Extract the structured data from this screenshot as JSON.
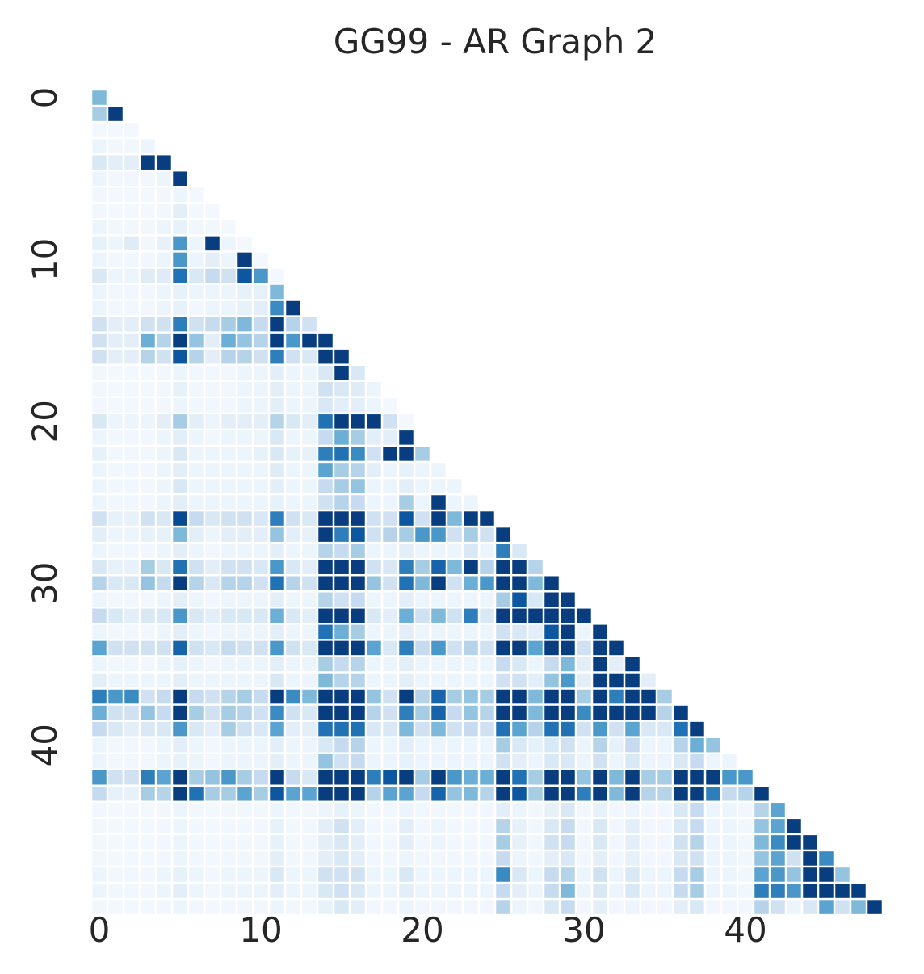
{
  "chart_data": {
    "type": "heatmap",
    "title": "GG99 - AR Graph 2",
    "xlabel": "",
    "ylabel": "",
    "n": 49,
    "layout": "lower-triangular",
    "x_ticks": [
      0,
      10,
      20,
      30,
      40
    ],
    "y_ticks": [
      0,
      10,
      20,
      30,
      40
    ],
    "colormap": "Blues",
    "value_range": [
      0,
      1
    ],
    "grid": false,
    "colorbar": false,
    "cell_separator_color": "#ffffff",
    "values": [
      [
        0.45
      ],
      [
        0.35,
        0.95
      ],
      [
        0.02,
        0.02,
        0.02
      ],
      [
        0.05,
        0.03,
        0.03,
        0.05
      ],
      [
        0.15,
        0.1,
        0.1,
        0.95,
        0.95
      ],
      [
        0.05,
        0.03,
        0.03,
        0.03,
        0.05,
        0.95
      ],
      [
        0.03,
        0.02,
        0.02,
        0.02,
        0.03,
        0.05,
        0.02
      ],
      [
        0.03,
        0.02,
        0.02,
        0.02,
        0.03,
        0.1,
        0.02,
        0.02
      ],
      [
        0.05,
        0.03,
        0.03,
        0.03,
        0.05,
        0.08,
        0.03,
        0.03,
        0.02
      ],
      [
        0.08,
        0.05,
        0.12,
        0.03,
        0.08,
        0.6,
        0.05,
        0.95,
        0.05,
        0.02
      ],
      [
        0.05,
        0.03,
        0.03,
        0.03,
        0.05,
        0.6,
        0.05,
        0.1,
        0.05,
        0.95,
        0.02
      ],
      [
        0.15,
        0.05,
        0.05,
        0.12,
        0.12,
        0.75,
        0.15,
        0.25,
        0.2,
        0.85,
        0.6,
        0.02
      ],
      [
        0.05,
        0.03,
        0.03,
        0.03,
        0.05,
        0.08,
        0.05,
        0.05,
        0.05,
        0.08,
        0.08,
        0.45
      ],
      [
        0.05,
        0.03,
        0.03,
        0.03,
        0.05,
        0.08,
        0.03,
        0.05,
        0.05,
        0.08,
        0.1,
        0.65,
        0.95
      ],
      [
        0.2,
        0.1,
        0.1,
        0.2,
        0.2,
        0.7,
        0.2,
        0.25,
        0.35,
        0.45,
        0.25,
        0.95,
        0.3,
        0.2
      ],
      [
        0.2,
        0.1,
        0.1,
        0.5,
        0.3,
        0.95,
        0.4,
        0.1,
        0.5,
        0.4,
        0.3,
        0.95,
        0.6,
        0.95,
        0.95
      ],
      [
        0.2,
        0.1,
        0.1,
        0.3,
        0.2,
        0.85,
        0.3,
        0.1,
        0.3,
        0.3,
        0.2,
        0.7,
        0.2,
        0.15,
        0.95,
        0.95
      ],
      [
        0.03,
        0.02,
        0.02,
        0.02,
        0.03,
        0.05,
        0.03,
        0.03,
        0.03,
        0.05,
        0.05,
        0.1,
        0.05,
        0.05,
        0.15,
        0.95,
        0.15
      ],
      [
        0.03,
        0.02,
        0.02,
        0.02,
        0.03,
        0.08,
        0.03,
        0.03,
        0.03,
        0.05,
        0.05,
        0.1,
        0.05,
        0.05,
        0.2,
        0.15,
        0.12,
        0.05
      ],
      [
        0.03,
        0.02,
        0.02,
        0.02,
        0.03,
        0.05,
        0.03,
        0.03,
        0.03,
        0.05,
        0.05,
        0.1,
        0.05,
        0.05,
        0.15,
        0.1,
        0.1,
        0.05,
        0.02
      ],
      [
        0.15,
        0.05,
        0.05,
        0.05,
        0.1,
        0.35,
        0.1,
        0.05,
        0.1,
        0.1,
        0.1,
        0.3,
        0.15,
        0.1,
        0.75,
        0.95,
        0.95,
        0.95,
        0.2,
        0.02
      ],
      [
        0.05,
        0.03,
        0.03,
        0.03,
        0.05,
        0.1,
        0.05,
        0.03,
        0.05,
        0.05,
        0.05,
        0.15,
        0.05,
        0.05,
        0.25,
        0.5,
        0.35,
        0.1,
        0.1,
        0.95
      ],
      [
        0.08,
        0.03,
        0.03,
        0.03,
        0.05,
        0.15,
        0.05,
        0.05,
        0.05,
        0.05,
        0.08,
        0.15,
        0.08,
        0.08,
        0.7,
        0.75,
        0.65,
        0.2,
        0.95,
        0.95,
        0.35
      ],
      [
        0.05,
        0.03,
        0.03,
        0.03,
        0.05,
        0.1,
        0.05,
        0.05,
        0.05,
        0.05,
        0.05,
        0.12,
        0.05,
        0.05,
        0.55,
        0.35,
        0.3,
        0.1,
        0.05,
        0.08,
        0.05,
        0.05
      ],
      [
        0.05,
        0.03,
        0.03,
        0.03,
        0.05,
        0.15,
        0.05,
        0.05,
        0.05,
        0.05,
        0.05,
        0.1,
        0.05,
        0.05,
        0.25,
        0.35,
        0.4,
        0.05,
        0.05,
        0.1,
        0.05,
        0.05,
        0.05
      ],
      [
        0.05,
        0.03,
        0.03,
        0.03,
        0.05,
        0.1,
        0.05,
        0.05,
        0.05,
        0.05,
        0.05,
        0.08,
        0.05,
        0.05,
        0.2,
        0.3,
        0.25,
        0.05,
        0.05,
        0.35,
        0.05,
        0.95,
        0.05,
        0.05
      ],
      [
        0.2,
        0.08,
        0.08,
        0.2,
        0.15,
        0.9,
        0.25,
        0.15,
        0.2,
        0.2,
        0.15,
        0.7,
        0.2,
        0.15,
        0.95,
        0.95,
        0.95,
        0.2,
        0.2,
        0.85,
        0.2,
        0.95,
        0.45,
        0.95,
        0.95
      ],
      [
        0.1,
        0.05,
        0.05,
        0.08,
        0.08,
        0.45,
        0.1,
        0.05,
        0.1,
        0.1,
        0.1,
        0.4,
        0.1,
        0.08,
        0.95,
        0.7,
        0.85,
        0.2,
        0.3,
        0.35,
        0.6,
        0.6,
        0.2,
        0.35,
        0.2,
        0.95
      ],
      [
        0.05,
        0.03,
        0.03,
        0.03,
        0.05,
        0.1,
        0.05,
        0.03,
        0.05,
        0.05,
        0.05,
        0.1,
        0.05,
        0.05,
        0.3,
        0.25,
        0.35,
        0.05,
        0.05,
        0.1,
        0.05,
        0.05,
        0.05,
        0.15,
        0.05,
        0.7,
        0.15
      ],
      [
        0.15,
        0.08,
        0.08,
        0.35,
        0.15,
        0.75,
        0.2,
        0.1,
        0.2,
        0.2,
        0.15,
        0.6,
        0.15,
        0.1,
        0.95,
        0.95,
        0.95,
        0.2,
        0.15,
        0.7,
        0.35,
        0.8,
        0.45,
        0.95,
        0.3,
        0.95,
        0.95,
        0.3
      ],
      [
        0.3,
        0.15,
        0.15,
        0.4,
        0.25,
        0.95,
        0.3,
        0.15,
        0.3,
        0.3,
        0.2,
        0.75,
        0.3,
        0.2,
        0.95,
        0.95,
        0.95,
        0.4,
        0.2,
        0.75,
        0.45,
        0.95,
        0.2,
        0.5,
        0.6,
        0.95,
        0.95,
        0.45,
        0.95
      ],
      [
        0.05,
        0.03,
        0.03,
        0.03,
        0.05,
        0.1,
        0.05,
        0.03,
        0.05,
        0.05,
        0.05,
        0.1,
        0.05,
        0.05,
        0.3,
        0.2,
        0.25,
        0.05,
        0.05,
        0.1,
        0.05,
        0.05,
        0.05,
        0.05,
        0.05,
        0.35,
        0.85,
        0.15,
        0.95,
        0.95
      ],
      [
        0.25,
        0.15,
        0.1,
        0.15,
        0.15,
        0.6,
        0.15,
        0.1,
        0.15,
        0.15,
        0.15,
        0.5,
        0.15,
        0.1,
        0.95,
        0.95,
        0.95,
        0.15,
        0.1,
        0.5,
        0.2,
        0.45,
        0.2,
        0.7,
        0.15,
        0.95,
        0.95,
        0.95,
        0.95,
        0.95,
        0.95
      ],
      [
        0.05,
        0.03,
        0.03,
        0.03,
        0.05,
        0.1,
        0.05,
        0.03,
        0.05,
        0.05,
        0.05,
        0.1,
        0.05,
        0.05,
        0.75,
        0.5,
        0.35,
        0.05,
        0.05,
        0.1,
        0.05,
        0.05,
        0.05,
        0.05,
        0.05,
        0.2,
        0.15,
        0.1,
        0.85,
        0.95,
        0.05,
        0.95
      ],
      [
        0.55,
        0.2,
        0.2,
        0.2,
        0.2,
        0.8,
        0.2,
        0.15,
        0.25,
        0.2,
        0.2,
        0.6,
        0.2,
        0.15,
        0.95,
        0.95,
        0.95,
        0.55,
        0.15,
        0.7,
        0.25,
        0.6,
        0.2,
        0.3,
        0.2,
        0.95,
        0.95,
        0.55,
        0.95,
        0.95,
        0.2,
        0.95,
        0.95
      ],
      [
        0.05,
        0.03,
        0.03,
        0.03,
        0.05,
        0.08,
        0.05,
        0.03,
        0.05,
        0.05,
        0.05,
        0.1,
        0.05,
        0.05,
        0.35,
        0.25,
        0.3,
        0.05,
        0.05,
        0.1,
        0.05,
        0.05,
        0.05,
        0.05,
        0.05,
        0.25,
        0.15,
        0.05,
        0.25,
        0.45,
        0.1,
        0.95,
        0.1,
        0.95
      ],
      [
        0.1,
        0.05,
        0.05,
        0.05,
        0.05,
        0.1,
        0.05,
        0.05,
        0.05,
        0.05,
        0.05,
        0.15,
        0.05,
        0.05,
        0.45,
        0.3,
        0.3,
        0.05,
        0.05,
        0.1,
        0.05,
        0.05,
        0.05,
        0.05,
        0.05,
        0.2,
        0.2,
        0.1,
        0.4,
        0.6,
        0.1,
        0.95,
        0.95,
        0.95,
        0.1
      ],
      [
        0.7,
        0.6,
        0.65,
        0.2,
        0.25,
        0.95,
        0.25,
        0.2,
        0.3,
        0.35,
        0.25,
        0.95,
        0.65,
        0.45,
        0.95,
        0.95,
        0.95,
        0.4,
        0.2,
        0.95,
        0.3,
        0.8,
        0.35,
        0.4,
        0.35,
        0.95,
        0.95,
        0.45,
        0.95,
        0.95,
        0.35,
        0.95,
        0.7,
        0.95,
        0.95,
        0.35
      ],
      [
        0.5,
        0.2,
        0.2,
        0.4,
        0.25,
        0.95,
        0.35,
        0.2,
        0.35,
        0.3,
        0.2,
        0.65,
        0.2,
        0.15,
        0.95,
        0.95,
        0.95,
        0.3,
        0.2,
        0.7,
        0.35,
        0.8,
        0.25,
        0.4,
        0.3,
        0.95,
        0.95,
        0.45,
        0.95,
        0.95,
        0.65,
        0.95,
        0.95,
        0.95,
        0.95,
        0.3,
        0.95
      ],
      [
        0.25,
        0.15,
        0.1,
        0.15,
        0.15,
        0.6,
        0.15,
        0.1,
        0.35,
        0.2,
        0.15,
        0.55,
        0.1,
        0.1,
        0.75,
        0.75,
        0.75,
        0.15,
        0.15,
        0.45,
        0.2,
        0.45,
        0.2,
        0.25,
        0.2,
        0.75,
        0.55,
        0.3,
        0.75,
        0.75,
        0.2,
        0.6,
        0.2,
        0.55,
        0.15,
        0.15,
        0.75,
        0.95
      ],
      [
        0.05,
        0.03,
        0.03,
        0.03,
        0.05,
        0.1,
        0.05,
        0.03,
        0.05,
        0.05,
        0.05,
        0.1,
        0.05,
        0.05,
        0.15,
        0.25,
        0.3,
        0.05,
        0.05,
        0.1,
        0.05,
        0.05,
        0.05,
        0.05,
        0.05,
        0.35,
        0.15,
        0.08,
        0.15,
        0.2,
        0.05,
        0.3,
        0.08,
        0.25,
        0.05,
        0.05,
        0.3,
        0.5,
        0.4
      ],
      [
        0.05,
        0.03,
        0.03,
        0.03,
        0.05,
        0.08,
        0.05,
        0.03,
        0.05,
        0.05,
        0.05,
        0.1,
        0.05,
        0.05,
        0.4,
        0.2,
        0.25,
        0.05,
        0.05,
        0.08,
        0.05,
        0.05,
        0.05,
        0.05,
        0.05,
        0.2,
        0.1,
        0.05,
        0.15,
        0.15,
        0.05,
        0.2,
        0.05,
        0.15,
        0.05,
        0.05,
        0.15,
        0.25,
        0.05,
        0.05
      ],
      [
        0.6,
        0.2,
        0.2,
        0.7,
        0.55,
        0.95,
        0.35,
        0.4,
        0.6,
        0.35,
        0.25,
        0.95,
        0.25,
        0.15,
        0.95,
        0.95,
        0.95,
        0.7,
        0.85,
        0.95,
        0.35,
        0.95,
        0.6,
        0.5,
        0.5,
        0.95,
        0.75,
        0.35,
        0.95,
        0.95,
        0.4,
        0.95,
        0.45,
        0.95,
        0.35,
        0.35,
        0.95,
        0.95,
        0.95,
        0.6,
        0.6
      ],
      [
        0.25,
        0.08,
        0.08,
        0.35,
        0.3,
        0.95,
        0.75,
        0.35,
        0.35,
        0.55,
        0.35,
        0.85,
        0.55,
        0.55,
        0.95,
        0.95,
        0.95,
        0.3,
        0.55,
        0.55,
        0.25,
        0.8,
        0.4,
        0.45,
        0.3,
        0.95,
        0.85,
        0.35,
        0.95,
        0.95,
        0.7,
        0.95,
        0.45,
        0.95,
        0.3,
        0.3,
        0.95,
        0.95,
        0.7,
        0.25,
        0.3,
        0.95
      ],
      [
        0.03,
        0.02,
        0.02,
        0.02,
        0.03,
        0.05,
        0.03,
        0.02,
        0.03,
        0.03,
        0.03,
        0.05,
        0.03,
        0.03,
        0.05,
        0.08,
        0.05,
        0.03,
        0.03,
        0.05,
        0.03,
        0.03,
        0.03,
        0.03,
        0.03,
        0.1,
        0.05,
        0.03,
        0.08,
        0.15,
        0.03,
        0.08,
        0.03,
        0.05,
        0.03,
        0.03,
        0.15,
        0.25,
        0.05,
        0.05,
        0.03,
        0.3,
        0.55
      ],
      [
        0.03,
        0.02,
        0.02,
        0.02,
        0.03,
        0.05,
        0.03,
        0.02,
        0.03,
        0.03,
        0.03,
        0.08,
        0.03,
        0.03,
        0.1,
        0.2,
        0.1,
        0.03,
        0.03,
        0.1,
        0.03,
        0.05,
        0.03,
        0.03,
        0.03,
        0.3,
        0.08,
        0.03,
        0.15,
        0.25,
        0.03,
        0.15,
        0.03,
        0.1,
        0.03,
        0.03,
        0.15,
        0.25,
        0.05,
        0.05,
        0.03,
        0.4,
        0.55,
        0.95
      ],
      [
        0.03,
        0.02,
        0.02,
        0.02,
        0.03,
        0.05,
        0.03,
        0.02,
        0.03,
        0.03,
        0.03,
        0.08,
        0.03,
        0.03,
        0.1,
        0.15,
        0.1,
        0.03,
        0.03,
        0.1,
        0.03,
        0.05,
        0.03,
        0.03,
        0.03,
        0.35,
        0.08,
        0.03,
        0.2,
        0.25,
        0.03,
        0.15,
        0.03,
        0.1,
        0.03,
        0.03,
        0.2,
        0.3,
        0.05,
        0.05,
        0.03,
        0.45,
        0.65,
        0.95,
        0.95
      ],
      [
        0.03,
        0.02,
        0.02,
        0.02,
        0.03,
        0.05,
        0.03,
        0.02,
        0.03,
        0.03,
        0.03,
        0.1,
        0.03,
        0.03,
        0.1,
        0.15,
        0.1,
        0.03,
        0.03,
        0.05,
        0.03,
        0.03,
        0.03,
        0.03,
        0.03,
        0.25,
        0.05,
        0.03,
        0.1,
        0.15,
        0.03,
        0.1,
        0.03,
        0.08,
        0.03,
        0.03,
        0.15,
        0.2,
        0.05,
        0.05,
        0.03,
        0.4,
        0.55,
        0.2,
        0.95,
        0.65
      ],
      [
        0.05,
        0.03,
        0.03,
        0.03,
        0.05,
        0.08,
        0.05,
        0.03,
        0.05,
        0.05,
        0.05,
        0.15,
        0.05,
        0.05,
        0.2,
        0.2,
        0.2,
        0.05,
        0.05,
        0.15,
        0.05,
        0.05,
        0.05,
        0.05,
        0.05,
        0.65,
        0.15,
        0.05,
        0.25,
        0.3,
        0.05,
        0.2,
        0.05,
        0.15,
        0.05,
        0.05,
        0.25,
        0.35,
        0.05,
        0.05,
        0.03,
        0.55,
        0.6,
        0.4,
        0.95,
        0.95,
        0.4
      ],
      [
        0.05,
        0.03,
        0.03,
        0.03,
        0.05,
        0.1,
        0.05,
        0.03,
        0.05,
        0.05,
        0.05,
        0.1,
        0.05,
        0.05,
        0.15,
        0.2,
        0.15,
        0.05,
        0.05,
        0.1,
        0.05,
        0.05,
        0.05,
        0.05,
        0.05,
        0.25,
        0.1,
        0.05,
        0.25,
        0.45,
        0.05,
        0.15,
        0.05,
        0.15,
        0.05,
        0.05,
        0.25,
        0.35,
        0.05,
        0.05,
        0.03,
        0.7,
        0.7,
        0.6,
        0.95,
        0.95,
        0.95,
        0.95
      ],
      [
        0.03,
        0.02,
        0.02,
        0.02,
        0.03,
        0.05,
        0.03,
        0.02,
        0.03,
        0.03,
        0.03,
        0.05,
        0.03,
        0.03,
        0.08,
        0.15,
        0.1,
        0.03,
        0.03,
        0.05,
        0.03,
        0.03,
        0.03,
        0.03,
        0.03,
        0.3,
        0.05,
        0.03,
        0.15,
        0.25,
        0.03,
        0.1,
        0.03,
        0.05,
        0.03,
        0.03,
        0.1,
        0.15,
        0.03,
        0.03,
        0.03,
        0.3,
        0.2,
        0.05,
        0.15,
        0.55,
        0.2,
        0.45,
        0.95
      ]
    ]
  }
}
